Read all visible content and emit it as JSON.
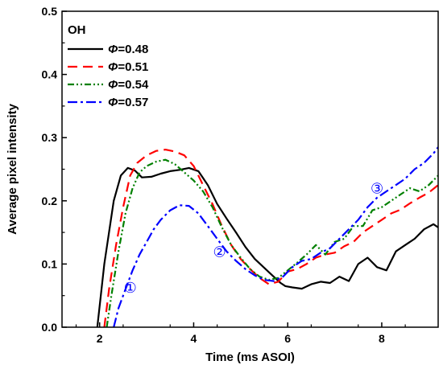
{
  "chart_data": {
    "type": "line",
    "title": "",
    "xlabel": "Time (ms ASOI)",
    "ylabel": "Average pixel intensity",
    "xlim": [
      1.2,
      9.2
    ],
    "ylim": [
      0.0,
      0.5
    ],
    "xticks": [
      2,
      4,
      6,
      8
    ],
    "yticks": [
      0.0,
      0.1,
      0.2,
      0.3,
      0.4,
      0.5
    ],
    "xtick_labels": [
      "2",
      "4",
      "6",
      "8"
    ],
    "ytick_labels": [
      "0.0",
      "0.1",
      "0.2",
      "0.3",
      "0.4",
      "0.5"
    ],
    "grid": false,
    "legend": {
      "placement": "top-left",
      "title": "OH"
    },
    "series": [
      {
        "name_symbol": "Φ",
        "name_value": "=0.48",
        "color": "#000000",
        "dash": "solid",
        "x": [
          1.95,
          2.1,
          2.3,
          2.45,
          2.6,
          2.75,
          2.9,
          3.1,
          3.3,
          3.5,
          3.7,
          3.9,
          4.1,
          4.3,
          4.5,
          4.7,
          4.9,
          5.1,
          5.3,
          5.5,
          5.7,
          5.85,
          5.95,
          6.1,
          6.3,
          6.5,
          6.7,
          6.9,
          7.1,
          7.3,
          7.5,
          7.7,
          7.9,
          8.1,
          8.3,
          8.5,
          8.7,
          8.9,
          9.1,
          9.2
        ],
        "y": [
          0.0,
          0.1,
          0.2,
          0.24,
          0.252,
          0.248,
          0.237,
          0.238,
          0.243,
          0.247,
          0.249,
          0.252,
          0.247,
          0.225,
          0.195,
          0.172,
          0.15,
          0.127,
          0.108,
          0.094,
          0.08,
          0.07,
          0.065,
          0.063,
          0.061,
          0.068,
          0.072,
          0.07,
          0.08,
          0.073,
          0.1,
          0.11,
          0.095,
          0.09,
          0.12,
          0.13,
          0.14,
          0.155,
          0.163,
          0.158
        ]
      },
      {
        "name_symbol": "Φ",
        "name_value": "=0.51",
        "color": "#ff0000",
        "dash": "dashed",
        "x": [
          2.1,
          2.2,
          2.35,
          2.5,
          2.65,
          2.8,
          3.0,
          3.2,
          3.4,
          3.6,
          3.8,
          4.0,
          4.2,
          4.4,
          4.6,
          4.8,
          5.0,
          5.2,
          5.4,
          5.6,
          5.8,
          6.0,
          6.2,
          6.4,
          6.6,
          6.8,
          7.0,
          7.2,
          7.4,
          7.6,
          7.8,
          8.0,
          8.2,
          8.4,
          8.6,
          8.8,
          9.0,
          9.2
        ],
        "y": [
          0.0,
          0.06,
          0.13,
          0.19,
          0.24,
          0.26,
          0.272,
          0.279,
          0.281,
          0.278,
          0.272,
          0.255,
          0.225,
          0.195,
          0.16,
          0.13,
          0.108,
          0.092,
          0.078,
          0.068,
          0.072,
          0.088,
          0.092,
          0.1,
          0.11,
          0.115,
          0.118,
          0.128,
          0.135,
          0.15,
          0.16,
          0.17,
          0.18,
          0.186,
          0.196,
          0.205,
          0.213,
          0.225
        ]
      },
      {
        "name_symbol": "Φ",
        "name_value": "=0.54",
        "color": "#008000",
        "dash": "dash-dot-dot",
        "x": [
          2.15,
          2.25,
          2.4,
          2.55,
          2.7,
          2.85,
          3.0,
          3.2,
          3.4,
          3.6,
          3.8,
          4.0,
          4.2,
          4.4,
          4.6,
          4.8,
          5.0,
          5.2,
          5.4,
          5.6,
          5.8,
          6.0,
          6.2,
          6.4,
          6.6,
          6.8,
          7.0,
          7.2,
          7.4,
          7.6,
          7.8,
          8.0,
          8.2,
          8.4,
          8.6,
          8.8,
          9.0,
          9.2
        ],
        "y": [
          0.0,
          0.05,
          0.12,
          0.18,
          0.22,
          0.245,
          0.255,
          0.262,
          0.265,
          0.258,
          0.245,
          0.232,
          0.215,
          0.19,
          0.158,
          0.13,
          0.11,
          0.092,
          0.08,
          0.075,
          0.078,
          0.09,
          0.102,
          0.115,
          0.13,
          0.115,
          0.135,
          0.14,
          0.16,
          0.16,
          0.185,
          0.19,
          0.2,
          0.21,
          0.22,
          0.215,
          0.225,
          0.24
        ]
      },
      {
        "name_symbol": "Φ",
        "name_value": "=0.57",
        "color": "#0000ff",
        "dash": "dash-dot",
        "x": [
          2.3,
          2.4,
          2.55,
          2.7,
          2.85,
          3.0,
          3.15,
          3.3,
          3.5,
          3.7,
          3.9,
          4.1,
          4.3,
          4.5,
          4.7,
          4.9,
          5.1,
          5.3,
          5.5,
          5.7,
          5.9,
          6.1,
          6.3,
          6.5,
          6.7,
          6.9,
          7.1,
          7.3,
          7.5,
          7.7,
          7.9,
          8.1,
          8.3,
          8.5,
          8.7,
          8.9,
          9.1,
          9.2
        ],
        "y": [
          0.0,
          0.03,
          0.06,
          0.09,
          0.115,
          0.135,
          0.155,
          0.17,
          0.185,
          0.193,
          0.192,
          0.18,
          0.16,
          0.14,
          0.12,
          0.105,
          0.092,
          0.082,
          0.075,
          0.073,
          0.08,
          0.095,
          0.105,
          0.108,
          0.118,
          0.125,
          0.14,
          0.155,
          0.17,
          0.19,
          0.205,
          0.215,
          0.225,
          0.235,
          0.25,
          0.26,
          0.275,
          0.285
        ]
      }
    ],
    "annotations": [
      {
        "label": "①",
        "x": 2.65,
        "y": 0.061,
        "color": "#0000ff"
      },
      {
        "label": "②",
        "x": 4.55,
        "y": 0.118,
        "color": "#0000ff"
      },
      {
        "label": "③",
        "x": 7.9,
        "y": 0.218,
        "color": "#0000ff"
      }
    ]
  }
}
